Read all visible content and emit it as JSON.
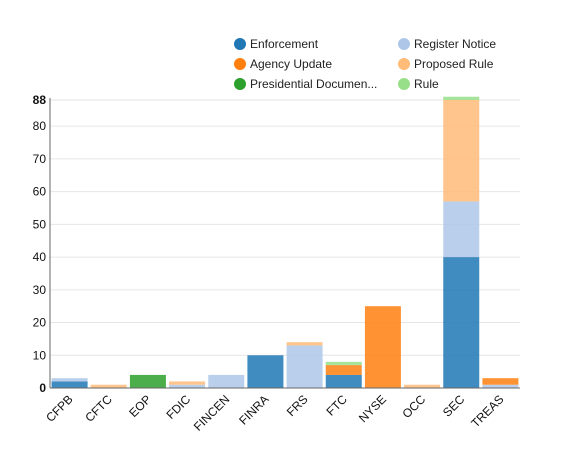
{
  "chart_data": {
    "type": "bar",
    "stacked": true,
    "categories": [
      "CFPB",
      "CFTC",
      "EOP",
      "FDIC",
      "FINCEN",
      "FINRA",
      "FRS",
      "FTC",
      "NYSE",
      "OCC",
      "SEC",
      "TREAS"
    ],
    "series": [
      {
        "name": "Enforcement",
        "color": "#1f77b4",
        "values": [
          2,
          0,
          0,
          0,
          0,
          10,
          0,
          4,
          0,
          0,
          40,
          0
        ]
      },
      {
        "name": "Register Notice",
        "color": "#aec7e8",
        "values": [
          1,
          0,
          0,
          1,
          4,
          0,
          13,
          0,
          0,
          0,
          17,
          1
        ]
      },
      {
        "name": "Agency Update",
        "color": "#ff7f0e",
        "values": [
          0,
          0,
          0,
          0,
          0,
          0,
          0,
          3,
          25,
          0,
          0,
          2
        ]
      },
      {
        "name": "Proposed Rule",
        "color": "#ffbb78",
        "values": [
          0,
          1,
          0,
          1,
          0,
          0,
          1,
          0,
          0,
          1,
          31,
          0
        ]
      },
      {
        "name": "Presidential Documen...",
        "color": "#2ca02c",
        "values": [
          0,
          0,
          4,
          0,
          0,
          0,
          0,
          0,
          0,
          0,
          0,
          0
        ]
      },
      {
        "name": "Rule",
        "color": "#98df8a",
        "values": [
          0,
          0,
          0,
          0,
          0,
          0,
          0,
          1,
          0,
          0,
          1,
          0
        ]
      }
    ],
    "yticks": [
      0,
      10,
      20,
      30,
      40,
      50,
      60,
      70,
      80
    ],
    "ymax_label": 88,
    "ylim": [
      0,
      88
    ],
    "grid": true,
    "legend_position": "top-right"
  }
}
